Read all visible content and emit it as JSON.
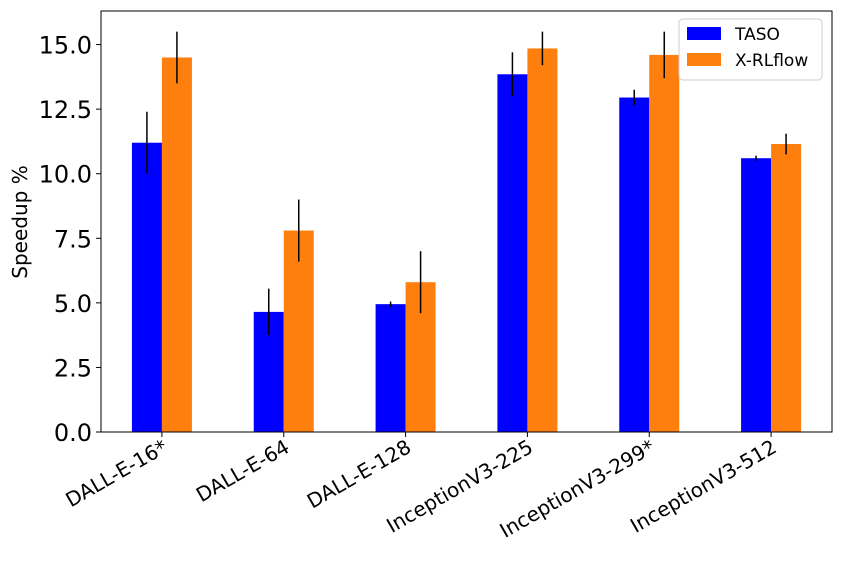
{
  "chart_data": {
    "type": "bar",
    "title": "",
    "xlabel": "",
    "ylabel": "Speedup %",
    "ylim": [
      0,
      16.3
    ],
    "yticks": [
      "0.0",
      "2.5",
      "5.0",
      "7.5",
      "10.0",
      "12.5",
      "15.0"
    ],
    "categories": [
      "DALL-E-16*",
      "DALL-E-64",
      "DALL-E-128",
      "InceptionV3-225",
      "InceptionV3-299*",
      "InceptionV3-512"
    ],
    "legend_position": "top-right",
    "grid": false,
    "series": [
      {
        "name": "TASO",
        "color": "#0000ff",
        "values": [
          11.2,
          4.65,
          4.95,
          13.85,
          12.95,
          10.6
        ],
        "errors": [
          1.2,
          0.9,
          0.1,
          0.85,
          0.3,
          0.1
        ]
      },
      {
        "name": "X-RLflow",
        "color": "#ff7f0e",
        "values": [
          14.5,
          7.8,
          5.8,
          14.85,
          14.6,
          11.15
        ],
        "errors": [
          1.0,
          1.2,
          1.2,
          0.65,
          0.9,
          0.4
        ]
      }
    ]
  }
}
